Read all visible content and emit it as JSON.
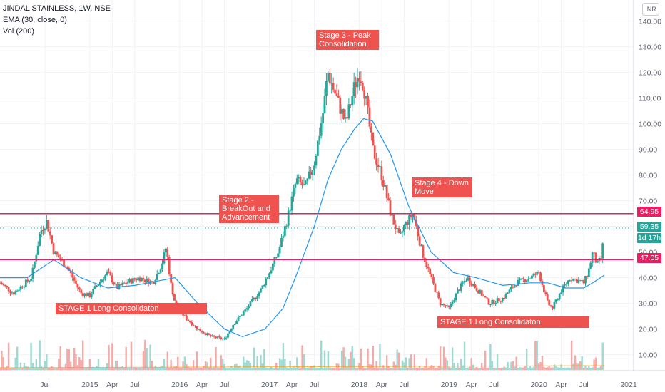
{
  "legend": {
    "symbol": "JINDAL STAINLESS, 1W, NSE",
    "ema": "EMA (30, close, 0)",
    "volume": "Vol (200)"
  },
  "currency_badge": "INR",
  "colors": {
    "up": "#26a69a",
    "down": "#ef5350",
    "ema": "#2196f3",
    "level": "#e91e63",
    "annotation": "#ef5350"
  },
  "price_tags": {
    "level_high": "64.95",
    "last_price": "59.35",
    "countdown": "1d 17h",
    "level_low": "47.05"
  },
  "annotations": {
    "stage1_left": "STAGE 1 Long Consolidaton",
    "stage2": "Stage 2 -\nBreakOut and\nAdvancement",
    "stage3": "Stage 3 - Peak\nConsolidation",
    "stage4": "Stage 4 - Down\nMove",
    "stage1_right": "STAGE 1 Long Consolidaton"
  },
  "chart_data": {
    "type": "candlestick",
    "ylim": [
      0,
      143
    ],
    "y_ticks": [
      "140.00",
      "130.00",
      "120.00",
      "110.00",
      "100.00",
      "90.00",
      "80.00",
      "70.00",
      "60.00",
      "50.00",
      "40.00",
      "30.00",
      "20.00",
      "10.00"
    ],
    "y_tick_values": [
      140,
      130,
      120,
      110,
      100,
      90,
      80,
      70,
      60,
      50,
      40,
      30,
      20,
      10
    ],
    "x_ticks": [
      "Jul",
      "2015",
      "Apr",
      "Jul",
      "2016",
      "Apr",
      "Jul",
      "2017",
      "Apr",
      "Jul",
      "2018",
      "Apr",
      "Jul",
      "2019",
      "Apr",
      "Jul",
      "2020",
      "Apr",
      "Jul",
      "2021"
    ],
    "x_tick_times": [
      2014.5,
      2015.0,
      2015.25,
      2015.5,
      2016.0,
      2016.25,
      2016.5,
      2017.0,
      2017.25,
      2017.5,
      2018.0,
      2018.25,
      2018.5,
      2019.0,
      2019.25,
      2019.5,
      2020.0,
      2020.25,
      2020.5,
      2021.0
    ],
    "horizontal_levels": [
      64.95,
      47.05
    ],
    "price_path": {
      "t": [
        2014.0,
        2014.15,
        2014.35,
        2014.45,
        2014.52,
        2014.6,
        2014.75,
        2014.9,
        2015.0,
        2015.1,
        2015.2,
        2015.3,
        2015.4,
        2015.55,
        2015.7,
        2015.8,
        2015.85,
        2015.9,
        2015.95,
        2016.05,
        2016.2,
        2016.35,
        2016.5,
        2016.6,
        2016.75,
        2016.9,
        2017.0,
        2017.1,
        2017.2,
        2017.3,
        2017.4,
        2017.5,
        2017.6,
        2017.65,
        2017.75,
        2017.85,
        2017.95,
        2018.0,
        2018.05,
        2018.15,
        2018.25,
        2018.35,
        2018.45,
        2018.5,
        2018.6,
        2018.7,
        2018.8,
        2018.9,
        2019.0,
        2019.1,
        2019.2,
        2019.3,
        2019.45,
        2019.6,
        2019.75,
        2019.9,
        2020.0,
        2020.1,
        2020.15,
        2020.25,
        2020.35,
        2020.5,
        2020.55,
        2020.6,
        2020.65,
        2020.7,
        2020.73
      ],
      "p": [
        38,
        34,
        40,
        58,
        62,
        50,
        44,
        34,
        33,
        38,
        42,
        36,
        38,
        40,
        38,
        45,
        52,
        38,
        30,
        25,
        20,
        17,
        16,
        22,
        28,
        35,
        42,
        50,
        63,
        78,
        75,
        85,
        105,
        120,
        110,
        100,
        115,
        120,
        115,
        90,
        80,
        65,
        55,
        60,
        65,
        50,
        40,
        30,
        28,
        35,
        40,
        36,
        30,
        32,
        38,
        40,
        42,
        30,
        28,
        35,
        40,
        38,
        42,
        50,
        45,
        48,
        59.35
      ]
    },
    "ema_path": {
      "t": [
        2014.0,
        2014.3,
        2014.6,
        2014.9,
        2015.2,
        2015.5,
        2015.8,
        2015.95,
        2016.2,
        2016.5,
        2016.7,
        2016.95,
        2017.15,
        2017.3,
        2017.5,
        2017.65,
        2017.8,
        2017.95,
        2018.05,
        2018.15,
        2018.35,
        2018.55,
        2018.8,
        2019.05,
        2019.3,
        2019.6,
        2019.9,
        2020.1,
        2020.3,
        2020.5,
        2020.6,
        2020.73
      ],
      "p": [
        40,
        40,
        47,
        40,
        36,
        37,
        39,
        40,
        30,
        20,
        17,
        20,
        28,
        41,
        60,
        78,
        90,
        98,
        102,
        101,
        88,
        68,
        50,
        42,
        40,
        37,
        38,
        38,
        36,
        36,
        38,
        41
      ]
    }
  }
}
